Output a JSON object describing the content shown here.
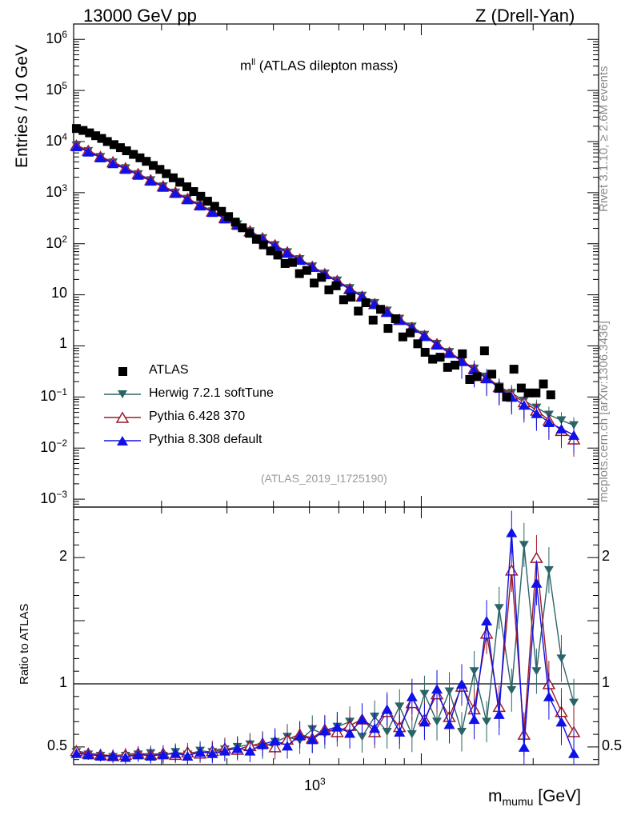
{
  "header": {
    "energy_label": "13000 GeV pp",
    "process_label": "Z (Drell-Yan)",
    "subtitle_main": "m",
    "subtitle_sup": "ll",
    "subtitle_rest": " (ATLAS dilepton mass)",
    "analysis_id": "(ATLAS_2019_I1725190)"
  },
  "side_labels": {
    "rivet": "Rivet 3.1.10, ≥ 2.6M events",
    "mcplots": "mcplots.cern.ch [arXiv:1306.3436]"
  },
  "axes": {
    "ylabel_top": "Entries / 10 GeV",
    "ylabel_bottom": "Ratio to ATLAS",
    "xlabel_main": "m",
    "xlabel_sub": "mumu",
    "xlabel_unit": " [GeV]",
    "x_tick_main": "10",
    "x_tick_exp": "3",
    "top_ticks": [
      {
        "v": 1000000.0,
        "base": "10",
        "exp": "6"
      },
      {
        "v": 100000.0,
        "base": "10",
        "exp": "5"
      },
      {
        "v": 10000.0,
        "base": "10",
        "exp": "4"
      },
      {
        "v": 1000.0,
        "base": "10",
        "exp": "3"
      },
      {
        "v": 100.0,
        "base": "10",
        "exp": "2"
      },
      {
        "v": 10,
        "base": "10",
        "exp": ""
      },
      {
        "v": 1,
        "base": "1",
        "exp": ""
      },
      {
        "v": 0.1,
        "base": "10",
        "exp": "−1"
      },
      {
        "v": 0.01,
        "base": "10",
        "exp": "−2"
      },
      {
        "v": 0.001,
        "base": "10",
        "exp": "−3"
      }
    ],
    "ratio_ticks": [
      {
        "v": 0.5,
        "label": "0.5"
      },
      {
        "v": 1,
        "label": "1"
      },
      {
        "v": 2,
        "label": "2"
      }
    ]
  },
  "legend": [
    {
      "name": "ATLAS",
      "color": "#000000",
      "marker": "square"
    },
    {
      "name": "Herwig 7.2.1 softTune",
      "color": "#2b6466",
      "marker": "triangle-down"
    },
    {
      "name": "Pythia 6.428 370",
      "color": "#9c1a2a",
      "marker": "triangle-open"
    },
    {
      "name": "Pythia 8.308 default",
      "color": "#1010e8",
      "marker": "triangle-up"
    }
  ],
  "chart_data": {
    "type": "scatter",
    "x_scale": "log",
    "y_scale": "log",
    "xlim": [
      116,
      3000
    ],
    "ylim_top": [
      0.0007,
      2000000
    ],
    "ylim_ratio": [
      0.36,
      2.4
    ],
    "data_points": {
      "x": [
        118,
        123,
        128,
        133,
        138,
        143,
        149,
        155,
        161,
        168,
        175,
        182,
        190,
        198,
        206,
        215,
        224,
        234,
        244,
        255,
        266,
        278,
        290,
        303,
        316,
        330,
        345,
        360,
        376,
        393,
        411,
        430,
        450,
        470,
        492,
        515,
        539,
        564,
        590,
        618,
        647,
        677,
        709,
        742,
        777,
        814,
        852,
        892,
        934,
        978,
        1024,
        1073,
        1124,
        1177,
        1232,
        1290,
        1350,
        1413,
        1479,
        1548,
        1620,
        1696,
        1775,
        1858,
        1945,
        2036,
        2131,
        2231
      ],
      "y": [
        18000,
        16500,
        14800,
        13000,
        11500,
        10000,
        8700,
        7600,
        6600,
        5600,
        4800,
        4100,
        3400,
        2850,
        2350,
        1950,
        1600,
        1300,
        1050,
        850,
        680,
        540,
        430,
        340,
        265,
        205,
        160,
        122,
        95,
        72,
        60,
        41,
        43,
        26,
        30,
        17,
        22,
        12.5,
        15,
        8,
        9,
        4.8,
        7,
        3.2,
        5.2,
        2.2,
        3.4,
        1.5,
        1.8,
        1.1,
        0.75,
        0.55,
        0.6,
        0.38,
        0.42,
        0.7,
        0.22,
        0.25,
        0.8,
        0.28,
        0.15,
        0.1,
        0.35,
        0.15,
        0.12,
        0.12,
        0.18,
        0.11
      ]
    },
    "series": [
      {
        "name": "Herwig 7.2.1 softTune",
        "x": [
          118,
          127,
          137,
          148,
          160,
          173,
          187,
          202,
          218,
          235,
          254,
          274,
          296,
          320,
          346,
          374,
          404,
          436,
          471,
          509,
          550,
          594,
          642,
          693,
          749,
          809,
          874,
          944,
          1020,
          1102,
          1190,
          1285,
          1388,
          1499,
          1620,
          1750,
          1890,
          2042,
          2205,
          2382,
          2573
        ],
        "y": [
          8300,
          6500,
          5000,
          3900,
          3000,
          2300,
          1750,
          1330,
          1000,
          760,
          570,
          430,
          320,
          240,
          175,
          128,
          94,
          68,
          50,
          36,
          26,
          19,
          13.5,
          9.6,
          6.9,
          4.9,
          3.4,
          2.4,
          1.65,
          1.1,
          0.76,
          0.52,
          0.36,
          0.25,
          0.16,
          0.12,
          0.085,
          0.062,
          0.045,
          0.035,
          0.028
        ]
      },
      {
        "name": "Pythia 6.428 370",
        "x": [
          118,
          127,
          137,
          148,
          160,
          173,
          187,
          202,
          218,
          235,
          254,
          274,
          296,
          320,
          346,
          374,
          404,
          436,
          471,
          509,
          550,
          594,
          642,
          693,
          749,
          809,
          874,
          944,
          1020,
          1102,
          1190,
          1285,
          1388,
          1499,
          1620,
          1750,
          1890,
          2042,
          2205,
          2382,
          2573
        ],
        "y": [
          8500,
          6700,
          5100,
          4000,
          3050,
          2350,
          1780,
          1350,
          1020,
          770,
          580,
          435,
          325,
          245,
          178,
          130,
          95,
          69,
          50,
          36,
          26,
          19,
          13.2,
          9.4,
          6.7,
          4.7,
          3.3,
          2.3,
          1.6,
          1.1,
          0.75,
          0.52,
          0.36,
          0.24,
          0.16,
          0.11,
          0.08,
          0.055,
          0.035,
          0.022,
          0.015
        ]
      },
      {
        "name": "Pythia 8.308 default",
        "x": [
          118,
          127,
          137,
          148,
          160,
          173,
          187,
          202,
          218,
          235,
          254,
          274,
          296,
          320,
          346,
          374,
          404,
          436,
          471,
          509,
          550,
          594,
          642,
          693,
          749,
          809,
          874,
          944,
          1020,
          1102,
          1190,
          1285,
          1388,
          1499,
          1620,
          1750,
          1890,
          2042,
          2205,
          2382,
          2573
        ],
        "y": [
          8000,
          6300,
          4850,
          3750,
          2900,
          2220,
          1700,
          1290,
          975,
          735,
          555,
          415,
          310,
          232,
          170,
          124,
          91,
          66,
          48,
          35,
          25,
          18,
          12.8,
          9.2,
          6.6,
          4.6,
          3.2,
          2.25,
          1.55,
          1.05,
          0.72,
          0.5,
          0.34,
          0.23,
          0.15,
          0.1,
          0.07,
          0.048,
          0.032,
          0.024,
          0.018
        ]
      }
    ],
    "ratio_series": [
      {
        "name": "Herwig 7.2.1 softTune",
        "x": [
          118,
          127,
          137,
          148,
          160,
          173,
          187,
          202,
          218,
          235,
          254,
          274,
          296,
          320,
          346,
          374,
          404,
          436,
          471,
          509,
          550,
          594,
          642,
          693,
          749,
          809,
          874,
          944,
          1020,
          1102,
          1190,
          1285,
          1388,
          1499,
          1620,
          1750,
          1890,
          2042,
          2205,
          2382,
          2573
        ],
        "y": [
          0.46,
          0.44,
          0.43,
          0.42,
          0.43,
          0.44,
          0.45,
          0.43,
          0.46,
          0.44,
          0.47,
          0.46,
          0.48,
          0.5,
          0.52,
          0.5,
          0.54,
          0.58,
          0.55,
          0.64,
          0.6,
          0.66,
          0.7,
          0.58,
          0.74,
          0.62,
          0.82,
          0.6,
          0.92,
          0.7,
          0.94,
          0.62,
          1.1,
          0.7,
          1.6,
          0.95,
          2.1,
          1.1,
          1.9,
          1.2,
          0.85
        ]
      },
      {
        "name": "Pythia 6.428 370",
        "x": [
          118,
          127,
          137,
          148,
          160,
          173,
          187,
          202,
          218,
          235,
          254,
          274,
          296,
          320,
          346,
          374,
          404,
          436,
          471,
          509,
          550,
          594,
          642,
          693,
          749,
          809,
          874,
          944,
          1020,
          1102,
          1190,
          1285,
          1388,
          1499,
          1620,
          1750,
          1890,
          2042,
          2205,
          2382,
          2573
        ],
        "y": [
          0.47,
          0.45,
          0.44,
          0.43,
          0.44,
          0.45,
          0.44,
          0.45,
          0.44,
          0.46,
          0.45,
          0.47,
          0.49,
          0.48,
          0.51,
          0.53,
          0.5,
          0.56,
          0.6,
          0.57,
          0.64,
          0.62,
          0.67,
          0.72,
          0.62,
          0.78,
          0.66,
          0.85,
          0.72,
          0.92,
          0.74,
          0.98,
          0.8,
          1.4,
          0.82,
          1.9,
          0.6,
          2.0,
          1.0,
          0.78,
          0.62
        ]
      },
      {
        "name": "Pythia 8.308 default",
        "x": [
          118,
          127,
          137,
          148,
          160,
          173,
          187,
          202,
          218,
          235,
          254,
          274,
          296,
          320,
          346,
          374,
          404,
          436,
          471,
          509,
          550,
          594,
          642,
          693,
          749,
          809,
          874,
          944,
          1020,
          1102,
          1190,
          1285,
          1388,
          1499,
          1620,
          1750,
          1890,
          2042,
          2205,
          2382,
          2573
        ],
        "y": [
          0.45,
          0.44,
          0.43,
          0.43,
          0.42,
          0.44,
          0.43,
          0.44,
          0.45,
          0.43,
          0.46,
          0.45,
          0.47,
          0.49,
          0.47,
          0.52,
          0.55,
          0.51,
          0.59,
          0.56,
          0.63,
          0.66,
          0.61,
          0.72,
          0.65,
          0.8,
          0.62,
          0.9,
          0.7,
          0.96,
          0.68,
          1.0,
          0.72,
          1.5,
          0.76,
          2.2,
          0.5,
          1.8,
          0.9,
          0.7,
          0.45
        ]
      }
    ],
    "grid": false,
    "legend_position": "bottom-left"
  }
}
